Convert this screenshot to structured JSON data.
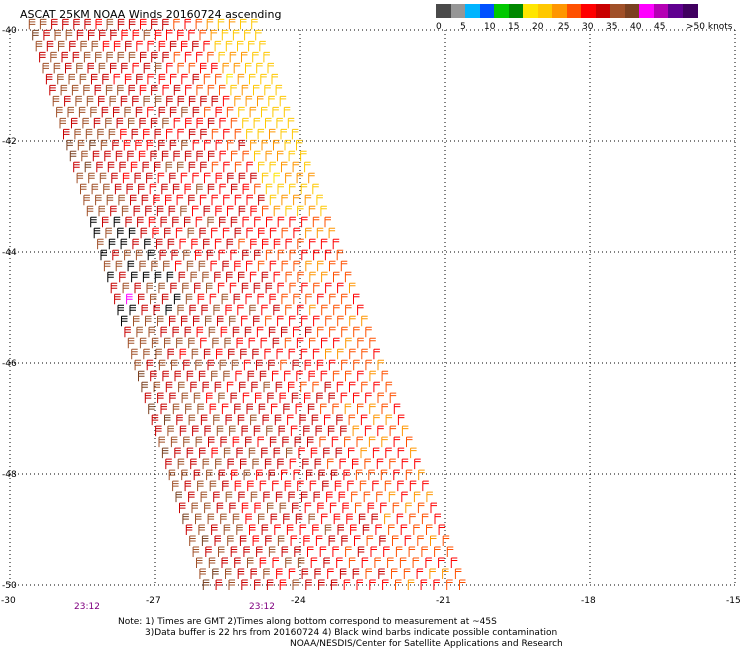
{
  "title": "ASCAT 25KM NOAA Winds 20160724 ascending",
  "legend": {
    "colors": [
      "#4a4a4a",
      "#969696",
      "#00b4ff",
      "#0050ff",
      "#00c800",
      "#008800",
      "#ffe600",
      "#ffc800",
      "#ff9600",
      "#ff5000",
      "#ff0000",
      "#c80000",
      "#a05028",
      "#7a4020",
      "#ff00ff",
      "#b400b4",
      "#600090",
      "#400060"
    ],
    "labels": [
      "0",
      "5",
      "10",
      "15",
      "20",
      "25",
      "30",
      "35",
      "40",
      "45",
      ">50 knots"
    ]
  },
  "axes": {
    "x_ticks": [
      "-30",
      "-27",
      "-24",
      "-21",
      "-18",
      "-15"
    ],
    "y_ticks": [
      "-40",
      "-42",
      "-44",
      "-46",
      "-48",
      "-50"
    ]
  },
  "times": [
    "23:12",
    "23:12"
  ],
  "notes": {
    "line1": "Note: 1) Times are GMT 2)Times along bottom correspond to measurement at ~45S",
    "line2": "3)Data buffer is 22 hrs from 20160724 4) Black wind barbs indicate possible contamination",
    "line3": "NOAA/NESDIS/Center for Satellite Applications and Research"
  },
  "swath": {
    "corners_lonlat": [
      [
        -29.6,
        -39.9
      ],
      [
        -25.0,
        -39.9
      ],
      [
        -20.7,
        -50.0
      ],
      [
        -26.0,
        -50.0
      ]
    ],
    "speed_zones_knots": {
      "west": 35,
      "center": 32,
      "east_north": 22,
      "east_south": 27
    },
    "contamination_lon_lat": [
      -27.5,
      -44.8
    ]
  }
}
